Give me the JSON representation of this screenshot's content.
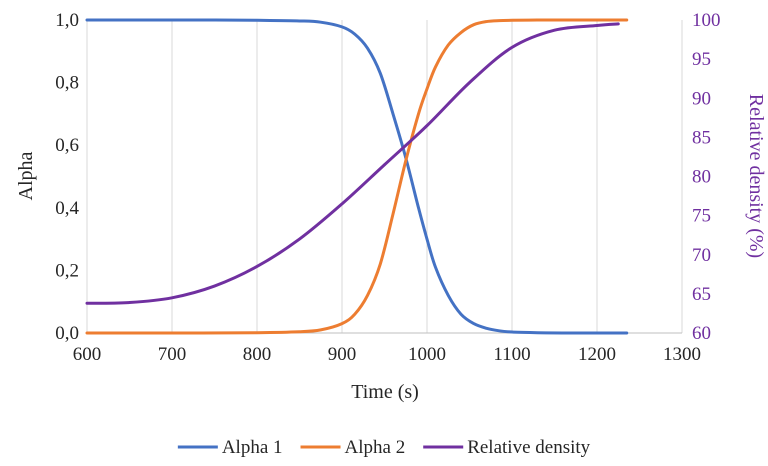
{
  "chart_data": {
    "type": "line",
    "xlabel": "Time (s)",
    "ylabel_left": "Alpha",
    "ylabel_right": "Relative density (%)",
    "xlim": [
      600,
      1300
    ],
    "ylim_left": [
      0,
      1
    ],
    "ylim_right": [
      60,
      100
    ],
    "x_ticks": [
      "600",
      "700",
      "800",
      "900",
      "1000",
      "1100",
      "1200",
      "1300"
    ],
    "y_left_ticks": [
      "0,0",
      "0,2",
      "0,4",
      "0,6",
      "0,8",
      "1,0"
    ],
    "y_right_ticks": [
      "60",
      "65",
      "70",
      "75",
      "80",
      "85",
      "90",
      "95",
      "100"
    ],
    "grid": "vertical",
    "legend_position": "bottom",
    "colors": {
      "alpha1": "#4472C4",
      "alpha2": "#ED7D31",
      "density": "#7030A0",
      "grid": "#D9D9D9",
      "right_axis_text": "#7030A0"
    },
    "series": [
      {
        "name": "Alpha 1",
        "axis": "left",
        "x": [
          600,
          650,
          700,
          750,
          800,
          850,
          875,
          900,
          915,
          930,
          945,
          960,
          975,
          990,
          1000,
          1010,
          1025,
          1040,
          1055,
          1070,
          1085,
          1100,
          1130,
          1160,
          1200,
          1235
        ],
        "y": [
          1.0,
          1.0,
          1.0,
          1.0,
          0.999,
          0.997,
          0.993,
          0.978,
          0.955,
          0.91,
          0.83,
          0.7,
          0.56,
          0.4,
          0.3,
          0.21,
          0.12,
          0.06,
          0.03,
          0.015,
          0.007,
          0.003,
          0.001,
          0.0,
          0.0,
          0.0
        ]
      },
      {
        "name": "Alpha 2",
        "axis": "left",
        "x": [
          600,
          700,
          800,
          850,
          875,
          900,
          915,
          930,
          945,
          960,
          975,
          990,
          1000,
          1010,
          1025,
          1040,
          1055,
          1070,
          1085,
          1100,
          1130,
          1160,
          1200,
          1235
        ],
        "y": [
          0.0,
          0.0,
          0.001,
          0.004,
          0.01,
          0.03,
          0.06,
          0.12,
          0.22,
          0.38,
          0.55,
          0.7,
          0.78,
          0.85,
          0.92,
          0.96,
          0.985,
          0.995,
          0.998,
          0.999,
          1.0,
          1.0,
          1.0,
          1.0
        ]
      },
      {
        "name": "Relative density",
        "axis": "right",
        "x": [
          600,
          650,
          700,
          750,
          800,
          850,
          900,
          950,
          1000,
          1050,
          1100,
          1150,
          1200,
          1225
        ],
        "y": [
          63.8,
          63.9,
          64.5,
          66.0,
          68.5,
          72.0,
          76.5,
          81.5,
          86.5,
          92.0,
          96.5,
          98.7,
          99.3,
          99.5
        ]
      }
    ]
  }
}
